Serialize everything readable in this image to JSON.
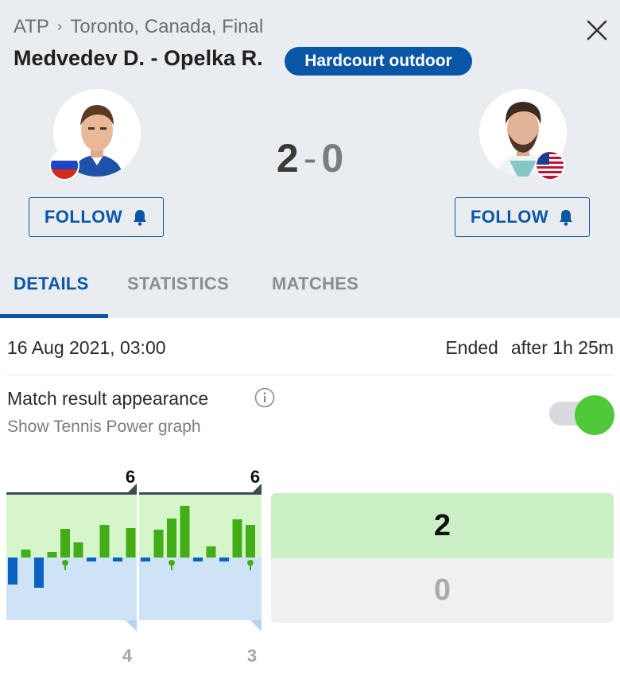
{
  "breadcrumb": {
    "tour": "ATP",
    "separator": "›",
    "event": "Toronto, Canada, Final"
  },
  "match": {
    "title": "Medvedev D. - Opelka R.",
    "surface": "Hardcourt outdoor"
  },
  "score": {
    "home": "2",
    "dash": "-",
    "away": "0"
  },
  "buttons": {
    "follow_home": "FOLLOW",
    "follow_away": "FOLLOW"
  },
  "tabs": {
    "details": "DETAILS",
    "statistics": "STATISTICS",
    "matches": "MATCHES"
  },
  "info": {
    "datetime": "16 Aug 2021, 03:00",
    "status": "Ended",
    "duration": "after 1h 25m"
  },
  "appearance": {
    "label": "Match result appearance",
    "sublabel": "Show Tennis Power graph",
    "toggle_on": true
  },
  "power_graph": {
    "sets": [
      {
        "home": "6",
        "away": "4",
        "bars": [
          -34,
          10,
          -38,
          7,
          36,
          19,
          -5,
          41,
          -5,
          37
        ],
        "breaks": [
          4
        ]
      },
      {
        "home": "6",
        "away": "3",
        "bars": [
          -5,
          35,
          49,
          65,
          -5,
          14,
          -5,
          48,
          41
        ],
        "breaks": [
          2,
          8
        ]
      }
    ]
  },
  "result": {
    "home": "2",
    "away": "0"
  },
  "colors": {
    "accent": "#0a56a6",
    "home_bar": "#42ad17",
    "away_bar": "#0a62c2",
    "toggle": "#4fc83a"
  }
}
